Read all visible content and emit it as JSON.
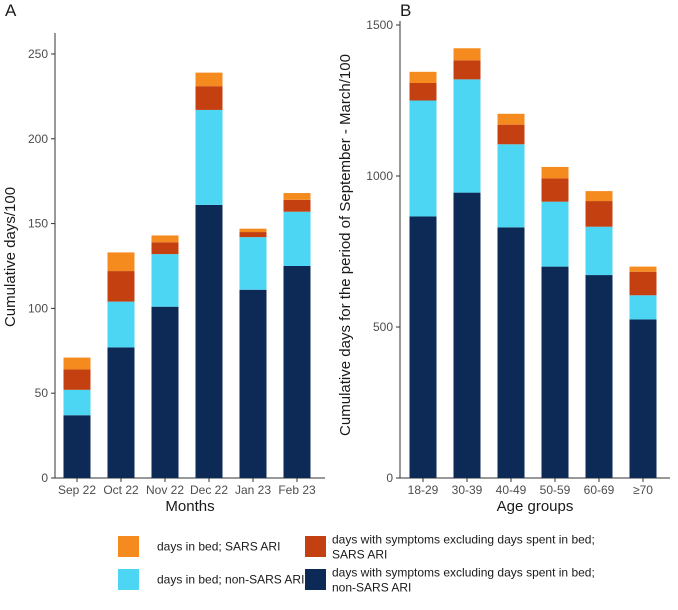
{
  "chart_data": [
    {
      "type": "bar",
      "stacked": true,
      "panel_label": "A",
      "categories": [
        "Sep 22",
        "Oct 22",
        "Nov 22",
        "Dec 22",
        "Jan 23",
        "Feb 23"
      ],
      "series": [
        {
          "name": "days with symptoms excluding days spent in bed; non-SARS ARI",
          "color": "#0c2a55",
          "values": [
            37,
            77,
            101,
            161,
            111,
            125
          ]
        },
        {
          "name": "days in bed; non-SARS ARI",
          "color": "#4dd6f4",
          "values": [
            15,
            27,
            31,
            56,
            31,
            32
          ]
        },
        {
          "name": "days with symptoms excluding days spent in bed; SARS ARI",
          "color": "#c44010",
          "values": [
            12,
            18,
            7,
            14,
            3,
            7
          ]
        },
        {
          "name": "days in bed; SARS ARI",
          "color": "#f58b1f",
          "values": [
            7,
            11,
            4,
            8,
            2,
            4
          ]
        }
      ],
      "xlabel": "Months",
      "ylabel": "Cumulative days/100",
      "ylim": [
        0,
        260
      ],
      "yticks": [
        0,
        50,
        100,
        150,
        200,
        250
      ],
      "grid": false
    },
    {
      "type": "bar",
      "stacked": true,
      "panel_label": "B",
      "categories": [
        "18-29",
        "30-39",
        "40-49",
        "50-59",
        "60-69",
        "≥70"
      ],
      "series": [
        {
          "name": "days with symptoms excluding days spent in bed; non-SARS ARI",
          "color": "#0c2a55",
          "values": [
            866,
            945,
            830,
            700,
            672,
            525
          ]
        },
        {
          "name": "days in bed; non-SARS ARI",
          "color": "#4dd6f4",
          "values": [
            384,
            375,
            275,
            215,
            160,
            80
          ]
        },
        {
          "name": "days with symptoms excluding days spent in bed; SARS ARI",
          "color": "#c44010",
          "values": [
            58,
            63,
            65,
            77,
            85,
            78
          ]
        },
        {
          "name": "days in bed; SARS ARI",
          "color": "#f58b1f",
          "values": [
            37,
            40,
            36,
            38,
            33,
            17
          ]
        }
      ],
      "xlabel": "Age groups",
      "ylabel": "Cumulative days for the period of September - March/100",
      "ylim": [
        0,
        1500
      ],
      "yticks": [
        0,
        500,
        1000,
        1500
      ],
      "grid": false
    }
  ],
  "legend": {
    "position": "bottom",
    "items": [
      {
        "lines": [
          "days in bed; SARS ARI"
        ],
        "color": "#f58b1f"
      },
      {
        "lines": [
          "days with symptoms excluding days spent in bed;",
          "SARS ARI"
        ],
        "color": "#c44010"
      },
      {
        "lines": [
          "days in bed; non-SARS ARI"
        ],
        "color": "#4dd6f4"
      },
      {
        "lines": [
          "days with symptoms excluding days spent in bed;",
          "non-SARS ARI"
        ],
        "color": "#0c2a55"
      }
    ]
  }
}
